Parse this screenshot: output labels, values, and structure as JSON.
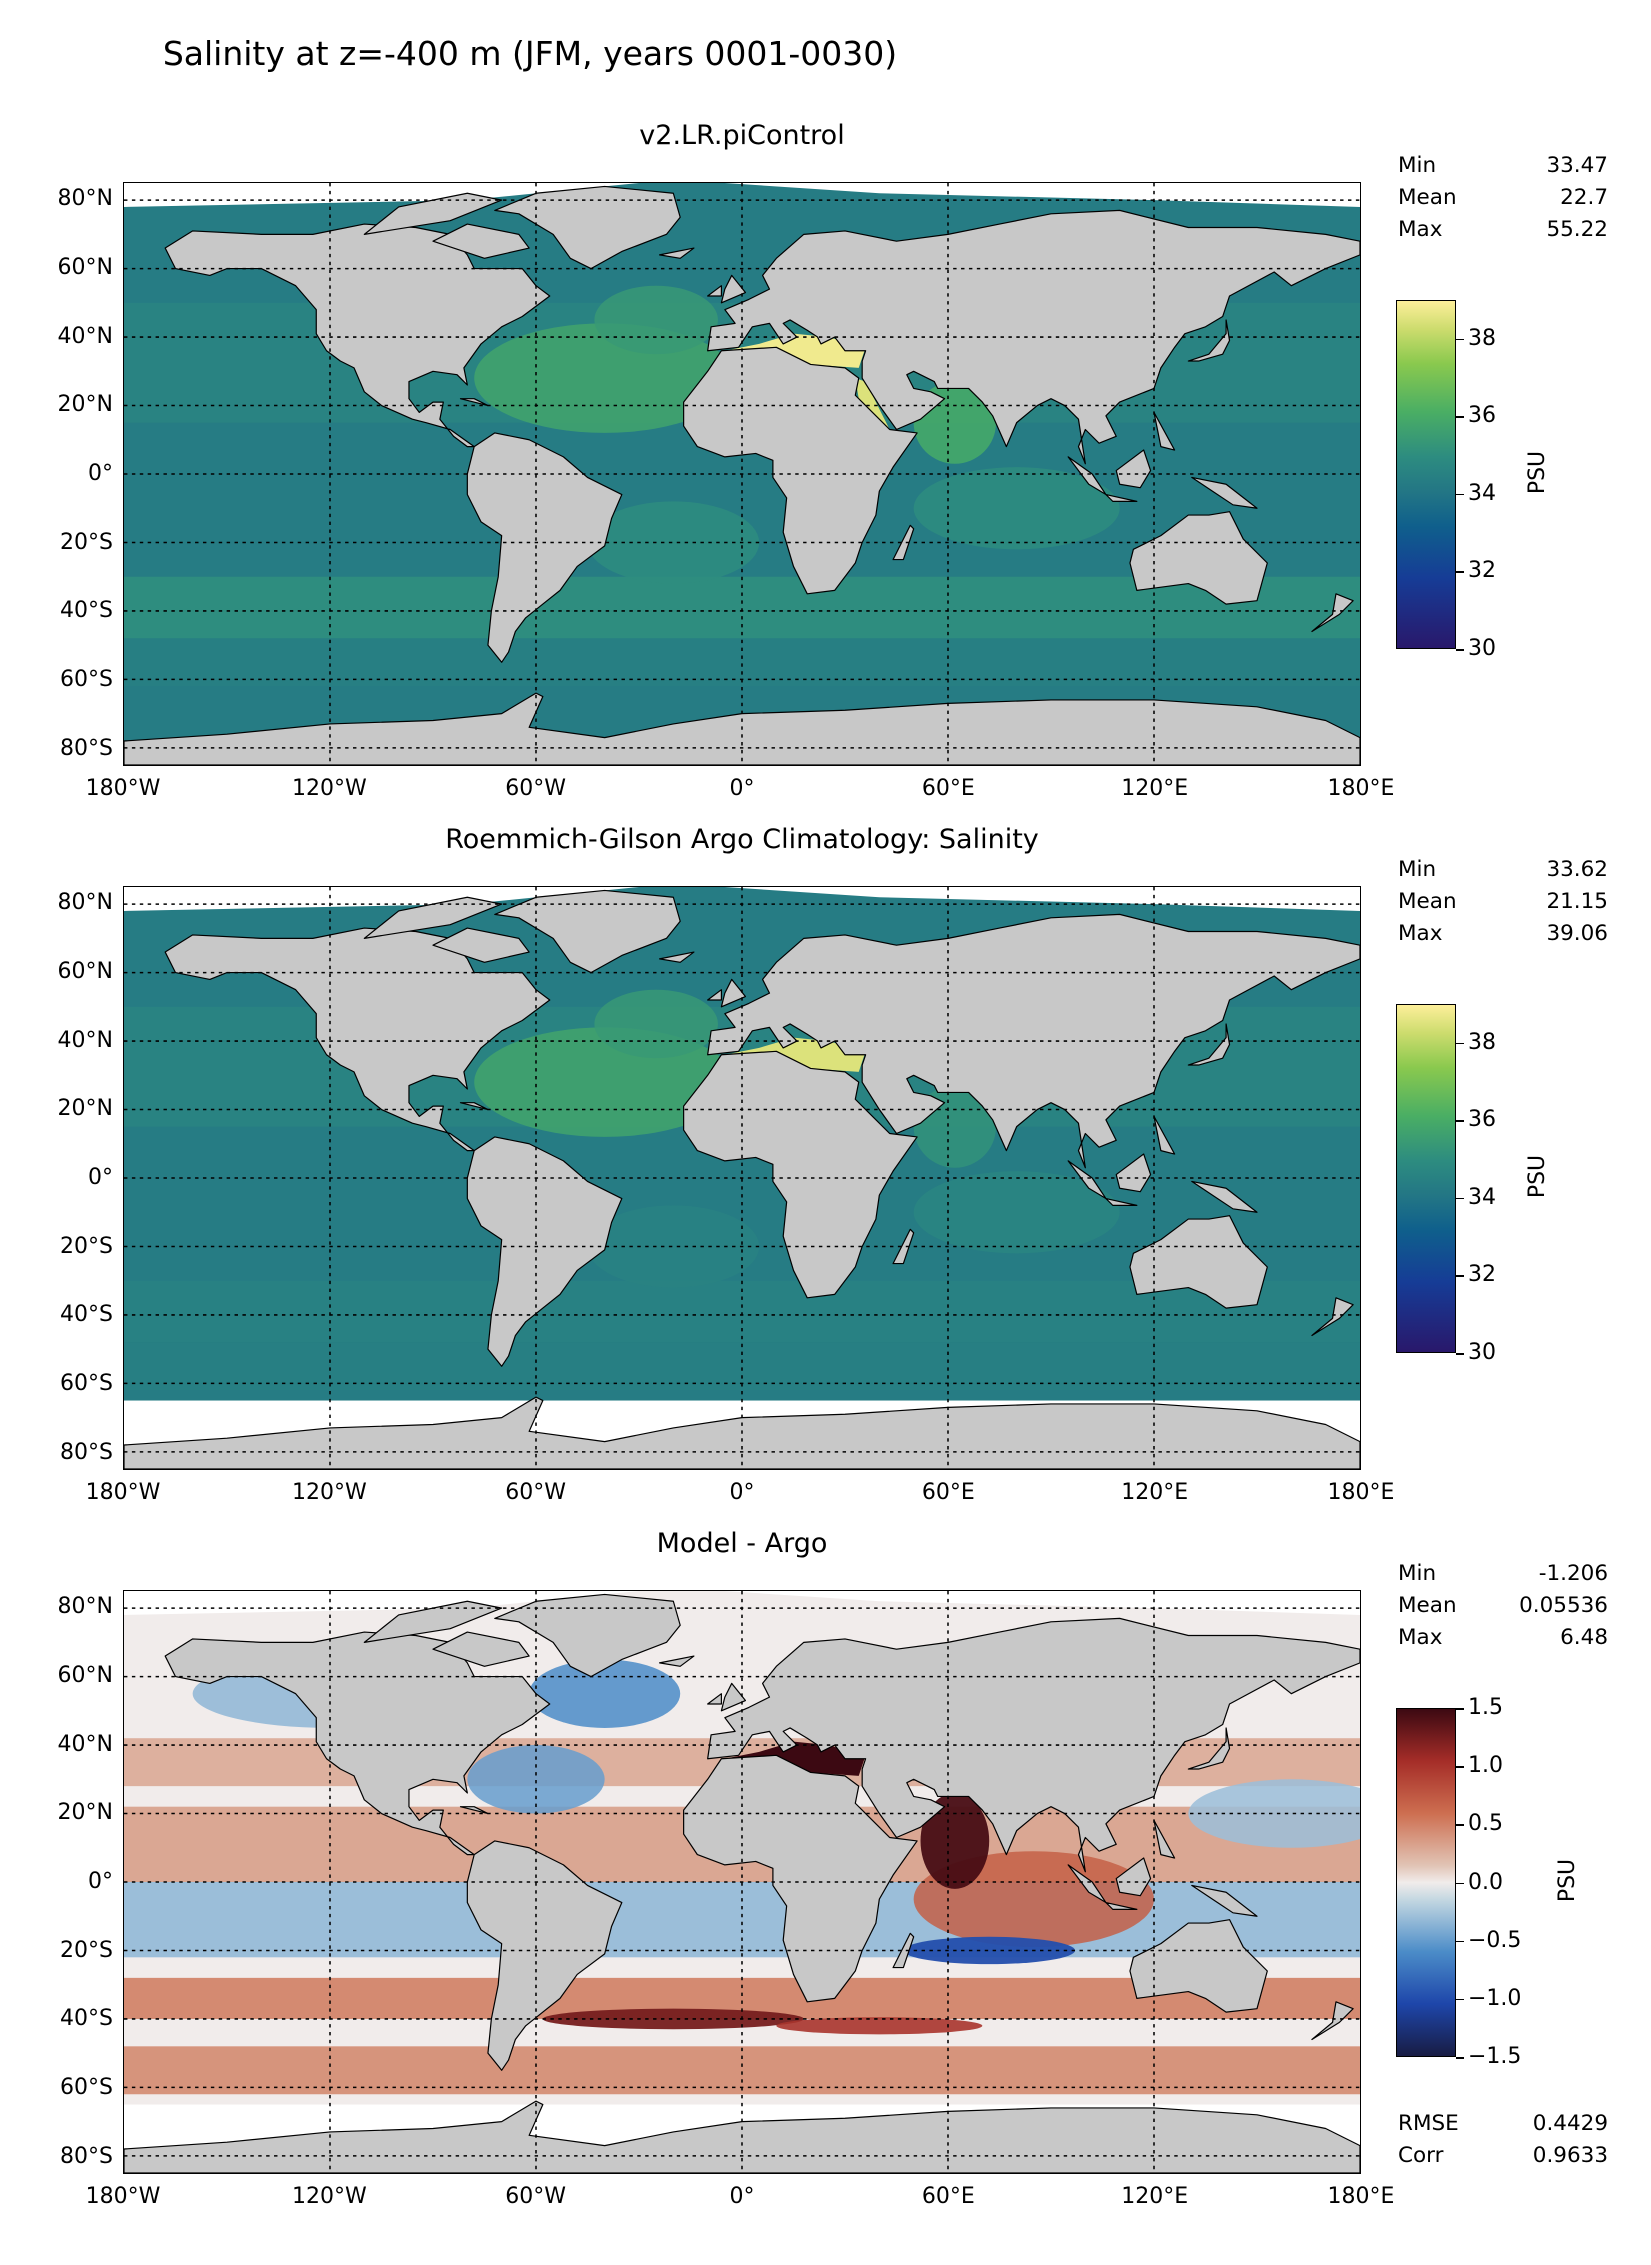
{
  "title": "Salinity at z=-400 m (JFM, years 0001-0030)",
  "lat_labels": [
    "80°N",
    "60°N",
    "40°N",
    "20°N",
    "0°",
    "20°S",
    "40°S",
    "60°S",
    "80°S"
  ],
  "lon_labels": [
    "180°W",
    "120°W",
    "60°W",
    "0°",
    "60°E",
    "120°E",
    "180°E"
  ],
  "colors": {
    "land": "#c8c8c8",
    "missing": "#ffffff",
    "grid": "#000000"
  },
  "panels": [
    {
      "title": "v2.LR.piControl",
      "stats": [
        [
          "Min",
          "33.47"
        ],
        [
          "Mean",
          "22.7"
        ],
        [
          "Max",
          "55.22"
        ]
      ],
      "colorbar": {
        "label": "PSU",
        "ticks": [
          "38",
          "36",
          "34",
          "32",
          "30"
        ],
        "range": [
          30,
          39
        ],
        "cmap": "haline"
      },
      "field": "model"
    },
    {
      "title": "Roemmich-Gilson Argo Climatology: Salinity",
      "stats": [
        [
          "Min",
          "33.62"
        ],
        [
          "Mean",
          "21.15"
        ],
        [
          "Max",
          "39.06"
        ]
      ],
      "colorbar": {
        "label": "PSU",
        "ticks": [
          "38",
          "36",
          "34",
          "32",
          "30"
        ],
        "range": [
          30,
          39
        ],
        "cmap": "haline"
      },
      "field": "argo"
    },
    {
      "title": "Model - Argo",
      "stats": [
        [
          "Min",
          "-1.206"
        ],
        [
          "Mean",
          "0.05536"
        ],
        [
          "Max",
          "6.48"
        ]
      ],
      "extra_stats": [
        [
          "RMSE",
          "0.4429"
        ],
        [
          "Corr",
          "0.9633"
        ]
      ],
      "colorbar": {
        "label": "PSU",
        "ticks": [
          "1.5",
          "1.0",
          "0.5",
          "0.0",
          "−0.5",
          "−1.0",
          "−1.5"
        ],
        "range": [
          -1.5,
          1.5
        ],
        "cmap": "balance"
      },
      "field": "diff"
    }
  ],
  "chart_data": [
    {
      "type": "heatmap",
      "title": "v2.LR.piControl",
      "xlabel": "",
      "ylabel": "",
      "xlim": [
        -180,
        180
      ],
      "ylim": [
        -85,
        85
      ],
      "colorbar_label": "PSU",
      "clim": [
        30,
        39
      ],
      "stats": {
        "Min": 33.47,
        "Mean": 22.7,
        "Max": 55.22
      },
      "regions": [
        {
          "name": "Mediterranean",
          "value": 38.8
        },
        {
          "name": "Red Sea",
          "value": 38.5
        },
        {
          "name": "Arabian Sea",
          "value": 35.8
        },
        {
          "name": "North Atlantic subtropics",
          "value": 35.8
        },
        {
          "name": "South Atlantic / S. Indian 40°S band",
          "value": 35.0
        },
        {
          "name": "Pacific",
          "value": 34.2
        },
        {
          "name": "Southern Ocean",
          "value": 34.4
        }
      ]
    },
    {
      "type": "heatmap",
      "title": "Roemmich-Gilson Argo Climatology: Salinity",
      "xlabel": "",
      "ylabel": "",
      "xlim": [
        -180,
        180
      ],
      "ylim": [
        -85,
        85
      ],
      "colorbar_label": "PSU",
      "clim": [
        30,
        39
      ],
      "stats": {
        "Min": 33.62,
        "Mean": 21.15,
        "Max": 39.06
      },
      "regions": [
        {
          "name": "Mediterranean",
          "value": 38.5
        },
        {
          "name": "North Atlantic subtropics",
          "value": 35.8
        },
        {
          "name": "Arabian Sea",
          "value": 35.2
        },
        {
          "name": "Pacific",
          "value": 34.3
        },
        {
          "name": "Southern Ocean",
          "value": 34.4
        }
      ]
    },
    {
      "type": "heatmap",
      "title": "Model - Argo",
      "xlabel": "",
      "ylabel": "",
      "xlim": [
        -180,
        180
      ],
      "ylim": [
        -85,
        85
      ],
      "colorbar_label": "PSU",
      "clim": [
        -1.5,
        1.5
      ],
      "stats": {
        "Min": -1.206,
        "Mean": 0.05536,
        "Max": 6.48,
        "RMSE": 0.4429,
        "Corr": 0.9633
      },
      "regions": [
        {
          "name": "Mediterranean",
          "value": 1.5
        },
        {
          "name": "Arabian Sea",
          "value": 1.4
        },
        {
          "name": "Indian Ocean north of 20°S",
          "value": 0.6
        },
        {
          "name": "South Indian band ~20°S",
          "value": -1.0
        },
        {
          "name": "South Atlantic ~40°S",
          "value": 1.2
        },
        {
          "name": "Labrador / subpolar N. Atlantic",
          "value": -0.6
        },
        {
          "name": "Pacific 40°S band",
          "value": 0.5
        },
        {
          "name": "Equatorial Pacific",
          "value": -0.3
        }
      ]
    }
  ]
}
